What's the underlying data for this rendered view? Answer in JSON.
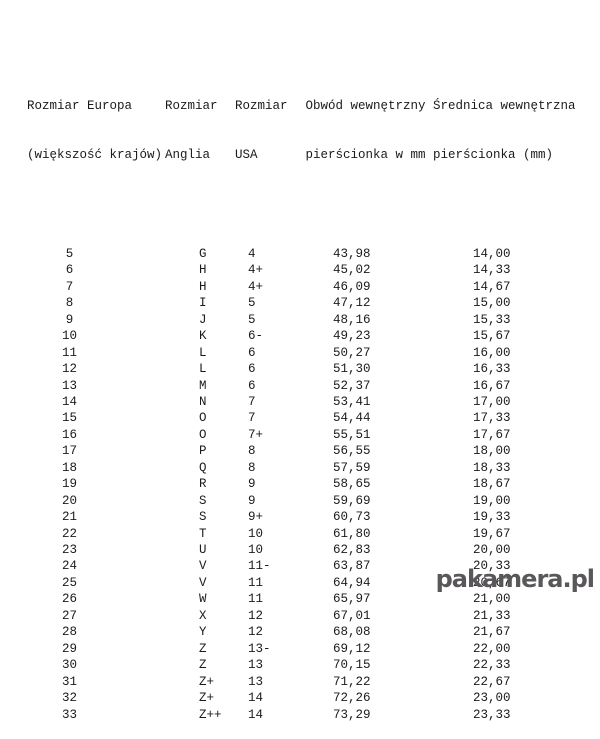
{
  "page": {
    "background": "#ffffff",
    "text_color": "#1b1b1b"
  },
  "watermark": {
    "text": "pakamera.pl",
    "color": "#59575a"
  },
  "table": {
    "headers": {
      "eu": [
        "Rozmiar Europa",
        "(większość krajów)"
      ],
      "uk": [
        "Rozmiar",
        "Anglia"
      ],
      "us": [
        "Rozmiar",
        "USA"
      ],
      "circumference": [
        "Obwód wewnętrzny",
        "pierścionka w mm"
      ],
      "diameter": [
        "Średnica wewnętrzna",
        "pierścionka (mm)"
      ]
    },
    "rows": [
      {
        "eu": "5",
        "uk": "G",
        "us": "4",
        "circumference": "43,98",
        "diameter": "14,00"
      },
      {
        "eu": "6",
        "uk": "H",
        "us": "4+",
        "circumference": "45,02",
        "diameter": "14,33"
      },
      {
        "eu": "7",
        "uk": "H",
        "us": "4+",
        "circumference": "46,09",
        "diameter": "14,67"
      },
      {
        "eu": "8",
        "uk": "I",
        "us": "5",
        "circumference": "47,12",
        "diameter": "15,00"
      },
      {
        "eu": "9",
        "uk": "J",
        "us": "5",
        "circumference": "48,16",
        "diameter": "15,33"
      },
      {
        "eu": "10",
        "uk": "K",
        "us": "6-",
        "circumference": "49,23",
        "diameter": "15,67"
      },
      {
        "eu": "11",
        "uk": "L",
        "us": "6",
        "circumference": "50,27",
        "diameter": "16,00"
      },
      {
        "eu": "12",
        "uk": "L",
        "us": "6",
        "circumference": "51,30",
        "diameter": "16,33"
      },
      {
        "eu": "13",
        "uk": "M",
        "us": "6",
        "circumference": "52,37",
        "diameter": "16,67"
      },
      {
        "eu": "14",
        "uk": "N",
        "us": "7",
        "circumference": "53,41",
        "diameter": "17,00"
      },
      {
        "eu": "15",
        "uk": "O",
        "us": "7",
        "circumference": "54,44",
        "diameter": "17,33"
      },
      {
        "eu": "16",
        "uk": "O",
        "us": "7+",
        "circumference": "55,51",
        "diameter": "17,67"
      },
      {
        "eu": "17",
        "uk": "P",
        "us": "8",
        "circumference": "56,55",
        "diameter": "18,00"
      },
      {
        "eu": "18",
        "uk": "Q",
        "us": "8",
        "circumference": "57,59",
        "diameter": "18,33"
      },
      {
        "eu": "19",
        "uk": "R",
        "us": "9",
        "circumference": "58,65",
        "diameter": "18,67"
      },
      {
        "eu": "20",
        "uk": "S",
        "us": "9",
        "circumference": "59,69",
        "diameter": "19,00"
      },
      {
        "eu": "21",
        "uk": "S",
        "us": "9+",
        "circumference": "60,73",
        "diameter": "19,33"
      },
      {
        "eu": "22",
        "uk": "T",
        "us": "10",
        "circumference": "61,80",
        "diameter": "19,67"
      },
      {
        "eu": "23",
        "uk": "U",
        "us": "10",
        "circumference": "62,83",
        "diameter": "20,00"
      },
      {
        "eu": "24",
        "uk": "V",
        "us": "11-",
        "circumference": "63,87",
        "diameter": "20,33"
      },
      {
        "eu": "25",
        "uk": "V",
        "us": "11",
        "circumference": "64,94",
        "diameter": "20,67"
      },
      {
        "eu": "26",
        "uk": "W",
        "us": "11",
        "circumference": "65,97",
        "diameter": "21,00"
      },
      {
        "eu": "27",
        "uk": "X",
        "us": "12",
        "circumference": "67,01",
        "diameter": "21,33"
      },
      {
        "eu": "28",
        "uk": "Y",
        "us": "12",
        "circumference": "68,08",
        "diameter": "21,67"
      },
      {
        "eu": "29",
        "uk": "Z",
        "us": "13-",
        "circumference": "69,12",
        "diameter": "22,00"
      },
      {
        "eu": "30",
        "uk": "Z",
        "us": "13",
        "circumference": "70,15",
        "diameter": "22,33"
      },
      {
        "eu": "31",
        "uk": "Z+",
        "us": "13",
        "circumference": "71,22",
        "diameter": "22,67"
      },
      {
        "eu": "32",
        "uk": "Z+",
        "us": "14",
        "circumference": "72,26",
        "diameter": "23,00"
      },
      {
        "eu": "33",
        "uk": "Z++",
        "us": "14",
        "circumference": "73,29",
        "diameter": "23,33"
      }
    ]
  }
}
